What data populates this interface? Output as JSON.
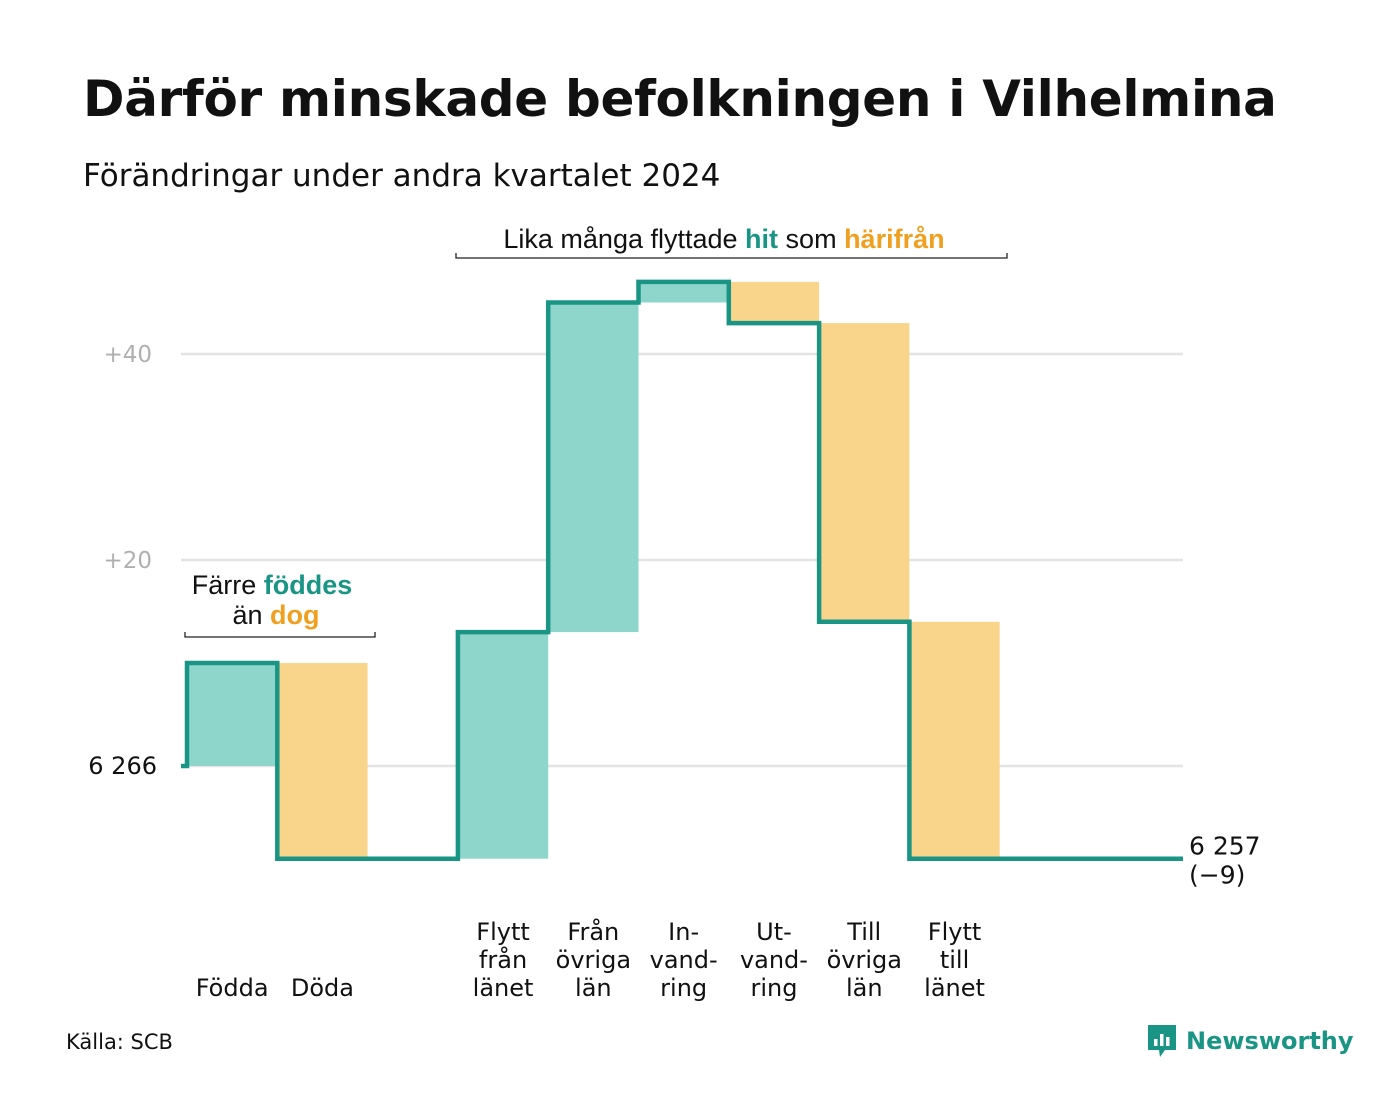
{
  "title": "Därför minskade befolkningen i Vilhelmina",
  "subtitle": "Förändringar under andra kvartalet 2024",
  "source": "Källa: SCB",
  "brand": "Newsworthy",
  "colors": {
    "line": "#1a9585",
    "inflow_fill": "#8ed5cb",
    "outflow_fill": "#f9d58c",
    "text_teal": "#1a9585",
    "text_orange": "#f0a020",
    "grid": "#e4e4e4"
  },
  "annotations": {
    "births_deaths": {
      "line1_pre": "Färre ",
      "line1_hl": "föddes",
      "line2_pre": "än ",
      "line2_hl": "dog"
    },
    "migration": {
      "pre": "Lika många flyttade ",
      "hl1": "hit",
      "mid": " som ",
      "hl2": "härifrån"
    }
  },
  "chart_data": {
    "type": "waterfall",
    "title": "Därför minskade befolkningen i Vilhelmina",
    "subtitle": "Förändringar under andra kvartalet 2024",
    "start_value": 6266,
    "start_label": "6 266",
    "end_value": 6257,
    "end_label": "6 257",
    "end_change_label": "(−9)",
    "y_ticks": [
      {
        "offset": 20,
        "label": "+20"
      },
      {
        "offset": 40,
        "label": "+40"
      }
    ],
    "grid": true,
    "steps": [
      {
        "label": [
          "Födda"
        ],
        "change": 10,
        "kind": "inflow"
      },
      {
        "label": [
          "Döda"
        ],
        "change": -19,
        "kind": "outflow"
      },
      {
        "label": [],
        "change": 0,
        "kind": "none"
      },
      {
        "label": [
          "Flytt",
          "från",
          "länet"
        ],
        "change": 22,
        "kind": "inflow"
      },
      {
        "label": [
          "Från",
          "övriga",
          "län"
        ],
        "change": 32,
        "kind": "inflow"
      },
      {
        "label": [
          "In-",
          "vand-",
          "ring"
        ],
        "change": 2,
        "kind": "inflow"
      },
      {
        "label": [
          "Ut-",
          "vand-",
          "ring"
        ],
        "change": -4,
        "kind": "outflow"
      },
      {
        "label": [
          "Till",
          "övriga",
          "län"
        ],
        "change": -29,
        "kind": "outflow"
      },
      {
        "label": [
          "Flytt",
          "till",
          "länet"
        ],
        "change": -23,
        "kind": "outflow"
      },
      {
        "label": [],
        "change": 0,
        "kind": "none"
      }
    ]
  }
}
